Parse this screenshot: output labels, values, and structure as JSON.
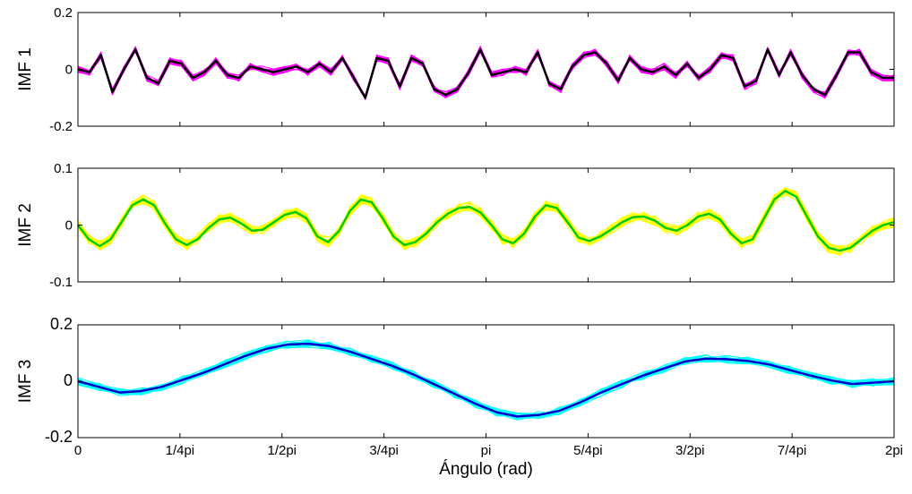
{
  "chart_data": [
    {
      "type": "line",
      "ylabel": "IMF 1",
      "xlim": [
        0,
        6.2832
      ],
      "ylim": [
        -0.2,
        0.2
      ],
      "yticks": [
        -0.2,
        0,
        0.2
      ],
      "ytick_labels": [
        "-0.2",
        "0",
        "0.2"
      ],
      "grid": false,
      "colors": {
        "ensemble": "#ff00ff",
        "mean": "#000000"
      },
      "ensemble_count": 18,
      "ensemble_spread": 0.012,
      "series": [
        {
          "role": "mean",
          "values": [
            0,
            -0.01,
            0.05,
            -0.08,
            0,
            0.07,
            -0.03,
            -0.05,
            0.03,
            0.02,
            -0.03,
            -0.01,
            0.03,
            -0.02,
            -0.03,
            0.01,
            0,
            -0.01,
            0,
            0.01,
            -0.01,
            0.02,
            -0.01,
            0.04,
            -0.03,
            -0.1,
            0.04,
            0.03,
            -0.06,
            0.04,
            0.02,
            -0.07,
            -0.09,
            -0.07,
            -0.01,
            0.07,
            -0.02,
            -0.01,
            0,
            -0.01,
            0.06,
            -0.05,
            -0.07,
            0.01,
            0.05,
            0.06,
            0.02,
            -0.04,
            0.04,
            0,
            -0.01,
            0.01,
            -0.02,
            0.02,
            -0.03,
            0,
            0.05,
            0.04,
            -0.06,
            -0.04,
            0.07,
            -0.02,
            0.06,
            -0.02,
            -0.07,
            -0.09,
            -0.02,
            0.06,
            0.06,
            -0.01,
            -0.03,
            -0.03
          ]
        }
      ]
    },
    {
      "type": "line",
      "ylabel": "IMF 2",
      "xlim": [
        0,
        6.2832
      ],
      "ylim": [
        -0.1,
        0.1
      ],
      "yticks": [
        -0.1,
        0,
        0.1
      ],
      "ytick_labels": [
        "-0.1",
        "0",
        "0.1"
      ],
      "grid": false,
      "colors": {
        "ensemble": "#ffff00",
        "mean": "#00cc00"
      },
      "ensemble_count": 18,
      "ensemble_spread": 0.009,
      "series": [
        {
          "role": "mean",
          "values": [
            0,
            -0.025,
            -0.037,
            -0.025,
            0.005,
            0.035,
            0.045,
            0.035,
            0.003,
            -0.025,
            -0.035,
            -0.025,
            -0.005,
            0.01,
            0.013,
            0.003,
            -0.01,
            -0.008,
            0.005,
            0.018,
            0.023,
            0.012,
            -0.02,
            -0.03,
            -0.01,
            0.025,
            0.045,
            0.04,
            0.012,
            -0.02,
            -0.035,
            -0.03,
            -0.015,
            0.005,
            0.02,
            0.03,
            0.032,
            0.022,
            0,
            -0.025,
            -0.032,
            -0.015,
            0.015,
            0.035,
            0.03,
            0.005,
            -0.022,
            -0.028,
            -0.02,
            -0.008,
            0.005,
            0.014,
            0.015,
            0.008,
            -0.005,
            -0.01,
            0,
            0.015,
            0.02,
            0.01,
            -0.015,
            -0.032,
            -0.025,
            0.01,
            0.045,
            0.06,
            0.05,
            0.015,
            -0.02,
            -0.04,
            -0.045,
            -0.04,
            -0.025,
            -0.01,
            0,
            0.005
          ]
        }
      ]
    },
    {
      "type": "line",
      "ylabel": "IMF 3",
      "xlabel": "Ángulo (rad)",
      "xlim": [
        0,
        6.2832
      ],
      "ylim": [
        -0.2,
        0.2
      ],
      "yticks": [
        -0.2,
        0,
        0.2
      ],
      "ytick_labels": [
        "-0.2",
        "0",
        "0.2"
      ],
      "xticks": [
        0,
        0.7854,
        1.5708,
        2.3562,
        3.1416,
        3.927,
        4.7124,
        5.4978,
        6.2832
      ],
      "xtick_labels": [
        "0",
        "1/4pi",
        "1/2pi",
        "3/4pi",
        "pi",
        "5/4pi",
        "3/2pi",
        "7/4pi",
        "2pi"
      ],
      "grid": false,
      "colors": {
        "ensemble": "#00ffff",
        "mean": "#0000cc"
      },
      "ensemble_count": 18,
      "ensemble_spread": 0.014,
      "series": [
        {
          "role": "mean",
          "values": [
            0,
            -0.02,
            -0.04,
            -0.035,
            -0.02,
            0.005,
            0.03,
            0.06,
            0.09,
            0.115,
            0.13,
            0.133,
            0.125,
            0.105,
            0.08,
            0.055,
            0.025,
            -0.01,
            -0.045,
            -0.08,
            -0.11,
            -0.125,
            -0.12,
            -0.105,
            -0.075,
            -0.04,
            -0.01,
            0.02,
            0.045,
            0.07,
            0.08,
            0.078,
            0.072,
            0.06,
            0.04,
            0.02,
            0.003,
            -0.01,
            -0.005,
            0
          ]
        }
      ]
    }
  ]
}
